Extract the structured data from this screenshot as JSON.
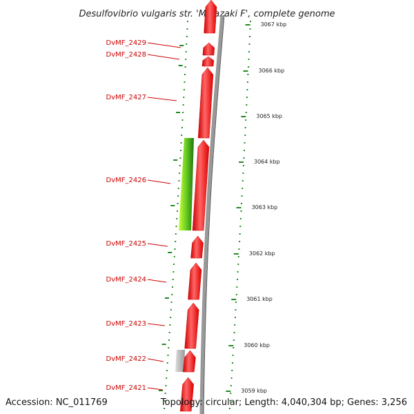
{
  "title": "Desulfovibrio vulgaris str. 'Miyazaki F', complete genome",
  "accession": "Accession: NC_011769",
  "summary": "Topology: circular; Length: 4,040,304 bp; Genes: 3,256",
  "colors": {
    "gene": "#ee0000",
    "gene_highlight": "#ff5555",
    "label": "#cc0000",
    "backbone": "#888888",
    "gc_dots": "#228822",
    "gc_skew": "#88cc22",
    "gray_feature": "#bbbbbb"
  },
  "kbp_labels": [
    "3067 kbp",
    "3066 kbp",
    "3065 kbp",
    "3064 kbp",
    "3063 kbp",
    "3062 kbp",
    "3061 kbp",
    "3060 kbp",
    "3059 kbp"
  ],
  "genes": [
    "DvMF_2429",
    "DvMF_2428",
    "DvMF_2427",
    "DvMF_2426",
    "DvMF_2425",
    "DvMF_2424",
    "DvMF_2423",
    "DvMF_2422",
    "DvMF_2421"
  ]
}
